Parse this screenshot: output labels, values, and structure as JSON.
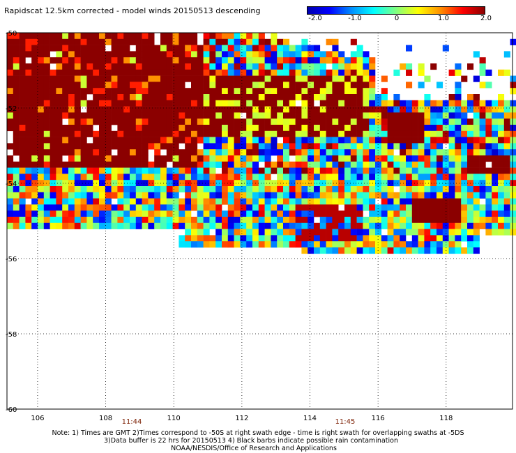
{
  "title": "Rapidscat 12.5km corrected - model winds 20150513 descending",
  "colorbar": {
    "ticks": [
      "-2.0",
      "-1.0",
      "0",
      "1.0",
      "2.0"
    ],
    "tick_values": [
      -2.0,
      -1.0,
      0,
      1.0,
      2.0
    ],
    "colors": [
      "#0000b0",
      "#0000ff",
      "#0090ff",
      "#00ffff",
      "#80ff80",
      "#ffff00",
      "#ff9000",
      "#ff0000",
      "#8b0000"
    ]
  },
  "axes": {
    "lon_labels": [
      "106",
      "108",
      "110",
      "112",
      "114",
      "116",
      "118"
    ],
    "lon_values": [
      106,
      108,
      110,
      112,
      114,
      116,
      118
    ],
    "lat_labels": [
      "-50",
      "-52",
      "-54",
      "-56",
      "-58",
      "-60"
    ],
    "lat_values": [
      -50,
      -52,
      -54,
      -56,
      -58,
      -60
    ],
    "lon_range": [
      105.1,
      119.95
    ],
    "lat_range": [
      -50,
      -60
    ]
  },
  "time_labels": [
    {
      "text": "11:44",
      "lon": 108.7
    },
    {
      "text": "11:45",
      "lon": 114.9
    }
  ],
  "notes": [
    "Note: 1) Times are GMT 2)Times correspond to -50S at right swath edge - time is right swath for overlapping swaths at -5DS",
    "3)Data buffer is 22 hrs for 20150513 4) Black barbs indicate possible rain contamination",
    "NOAA/NESDIS/Office of Research and Applications"
  ]
}
